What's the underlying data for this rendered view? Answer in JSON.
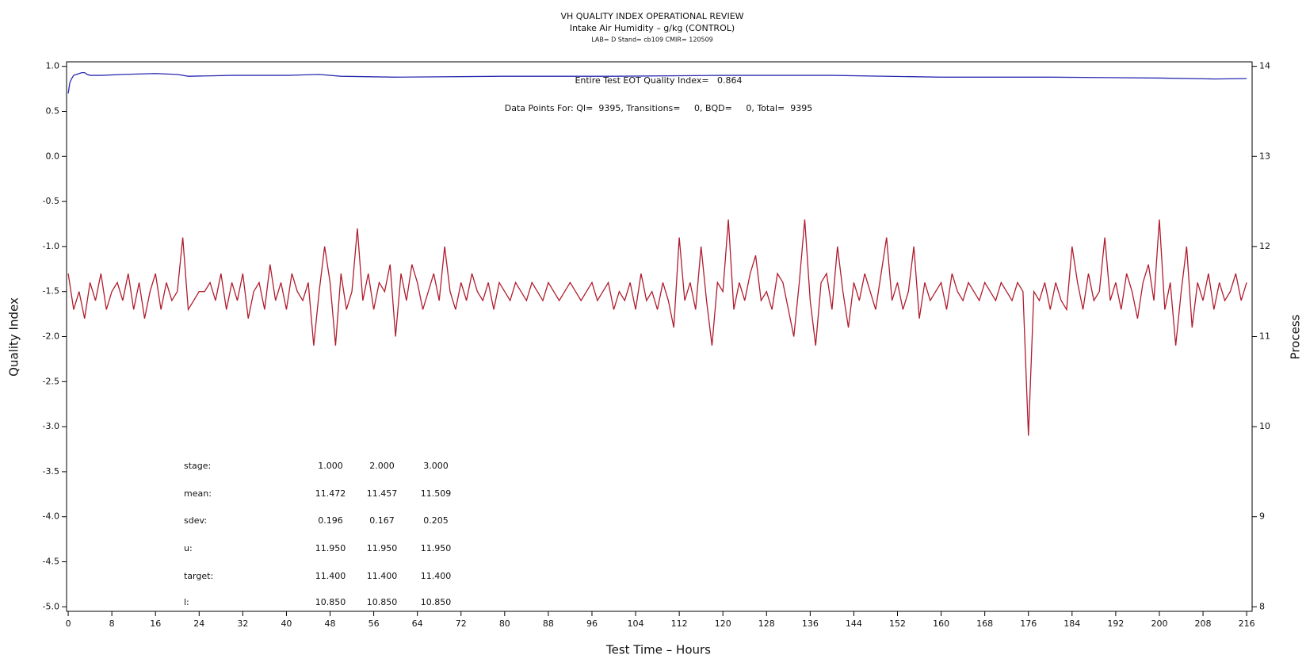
{
  "chart_data": {
    "type": "line",
    "title": "VH QUALITY INDEX OPERATIONAL REVIEW",
    "subtitle": "Intake Air Humidity – g/kg (CONTROL)",
    "subsubtitle": "LAB= D Stand= cb109 CMIR= 120509",
    "xlabel": "Test Time – Hours",
    "ylabel": "Quality Index",
    "y2label": "Process",
    "annotations": [
      "Entire Test EOT Quality Index=   0.864",
      "Data Points For: QI=  9395, Transitions=     0, BQD=     0, Total=  9395"
    ],
    "stats_table": [
      {
        "label": "stage:",
        "values": [
          "1.000",
          "2.000",
          "3.000"
        ]
      },
      {
        "label": "mean:",
        "values": [
          "11.472",
          "11.457",
          "11.509"
        ]
      },
      {
        "label": "sdev:",
        "values": [
          "0.196",
          "0.167",
          "0.205"
        ]
      },
      {
        "label": "u:",
        "values": [
          "11.950",
          "11.950",
          "11.950"
        ]
      },
      {
        "label": "target:",
        "values": [
          "11.400",
          "11.400",
          "11.400"
        ]
      },
      {
        "label": "l:",
        "values": [
          "10.850",
          "10.850",
          "10.850"
        ]
      }
    ],
    "xlim": [
      -0.3,
      217
    ],
    "xticks": [
      0,
      8,
      16,
      24,
      32,
      40,
      48,
      56,
      64,
      72,
      80,
      88,
      96,
      104,
      112,
      120,
      128,
      136,
      144,
      152,
      160,
      168,
      176,
      184,
      192,
      200,
      208,
      216
    ],
    "ylim": [
      -5.05,
      1.05
    ],
    "yticks": [
      {
        "value": 1,
        "label": "1.0"
      },
      0.5,
      {
        "value": 0,
        "label": "0.0"
      },
      -0.5,
      {
        "value": -1,
        "label": "-1.0"
      },
      -1.5,
      {
        "value": -2,
        "label": "-2.0"
      },
      -2.5,
      {
        "value": -3,
        "label": "-3.0"
      },
      -3.5,
      {
        "value": -4,
        "label": "-4.0"
      },
      -4.5,
      {
        "value": -5,
        "label": "-5.0"
      }
    ],
    "y2lim": [
      7.95,
      14.05
    ],
    "y2ticks": [
      8,
      9,
      10,
      11,
      12,
      13,
      14
    ],
    "series": [
      {
        "color": "#b01c2e",
        "axis": "y2",
        "x": [
          0,
          1,
          2,
          3,
          4,
          5,
          6,
          7,
          8,
          9,
          10,
          11,
          12,
          13,
          14,
          15,
          16,
          17,
          18,
          19,
          20,
          21,
          22,
          23,
          24,
          25,
          26,
          27,
          28,
          29,
          30,
          31,
          32,
          33,
          34,
          35,
          36,
          37,
          38,
          39,
          40,
          41,
          42,
          43,
          44,
          45,
          46,
          47,
          48,
          49,
          50,
          51,
          52,
          53,
          54,
          55,
          56,
          57,
          58,
          59,
          60,
          61,
          62,
          63,
          64,
          65,
          66,
          67,
          68,
          69,
          70,
          71,
          72,
          73,
          74,
          75,
          76,
          77,
          78,
          79,
          80,
          81,
          82,
          83,
          84,
          85,
          86,
          87,
          88,
          89,
          90,
          91,
          92,
          93,
          94,
          95,
          96,
          97,
          98,
          99,
          100,
          101,
          102,
          103,
          104,
          105,
          106,
          107,
          108,
          109,
          110,
          111,
          112,
          113,
          114,
          115,
          116,
          117,
          118,
          119,
          120,
          121,
          122,
          123,
          124,
          125,
          126,
          127,
          128,
          129,
          130,
          131,
          132,
          133,
          134,
          135,
          136,
          137,
          138,
          139,
          140,
          141,
          142,
          143,
          144,
          145,
          146,
          147,
          148,
          149,
          150,
          151,
          152,
          153,
          154,
          155,
          156,
          157,
          158,
          159,
          160,
          161,
          162,
          163,
          164,
          165,
          166,
          167,
          168,
          169,
          170,
          171,
          172,
          173,
          174,
          175,
          176,
          177,
          178,
          179,
          180,
          181,
          182,
          183,
          184,
          185,
          186,
          187,
          188,
          189,
          190,
          191,
          192,
          193,
          194,
          195,
          196,
          197,
          198,
          199,
          200,
          201,
          202,
          203,
          204,
          205,
          206,
          207,
          208,
          209,
          210,
          211,
          212,
          213,
          214,
          215,
          216
        ],
        "values": [
          11.7,
          11.3,
          11.5,
          11.2,
          11.6,
          11.4,
          11.7,
          11.3,
          11.5,
          11.6,
          11.4,
          11.7,
          11.3,
          11.6,
          11.2,
          11.5,
          11.7,
          11.3,
          11.6,
          11.4,
          11.5,
          12.1,
          11.3,
          11.4,
          11.5,
          11.5,
          11.6,
          11.4,
          11.7,
          11.3,
          11.6,
          11.4,
          11.7,
          11.2,
          11.5,
          11.6,
          11.3,
          11.8,
          11.4,
          11.6,
          11.3,
          11.7,
          11.5,
          11.4,
          11.6,
          10.9,
          11.5,
          12.0,
          11.6,
          10.9,
          11.7,
          11.3,
          11.5,
          12.2,
          11.4,
          11.7,
          11.3,
          11.6,
          11.5,
          11.8,
          11.0,
          11.7,
          11.4,
          11.8,
          11.6,
          11.3,
          11.5,
          11.7,
          11.4,
          12.0,
          11.5,
          11.3,
          11.6,
          11.4,
          11.7,
          11.5,
          11.4,
          11.6,
          11.3,
          11.6,
          11.5,
          11.4,
          11.6,
          11.5,
          11.4,
          11.6,
          11.5,
          11.4,
          11.6,
          11.5,
          11.4,
          11.5,
          11.6,
          11.5,
          11.4,
          11.5,
          11.6,
          11.4,
          11.5,
          11.6,
          11.3,
          11.5,
          11.4,
          11.6,
          11.3,
          11.7,
          11.4,
          11.5,
          11.3,
          11.6,
          11.4,
          11.1,
          12.1,
          11.4,
          11.6,
          11.3,
          12.0,
          11.4,
          10.9,
          11.6,
          11.5,
          12.3,
          11.3,
          11.6,
          11.4,
          11.7,
          11.9,
          11.4,
          11.5,
          11.3,
          11.7,
          11.6,
          11.3,
          11.0,
          11.6,
          12.3,
          11.4,
          10.9,
          11.6,
          11.7,
          11.3,
          12.0,
          11.5,
          11.1,
          11.6,
          11.4,
          11.7,
          11.5,
          11.3,
          11.7,
          12.1,
          11.4,
          11.6,
          11.3,
          11.5,
          12.0,
          11.2,
          11.6,
          11.4,
          11.5,
          11.6,
          11.3,
          11.7,
          11.5,
          11.4,
          11.6,
          11.5,
          11.4,
          11.6,
          11.5,
          11.4,
          11.6,
          11.5,
          11.4,
          11.6,
          11.5,
          9.9,
          11.5,
          11.4,
          11.6,
          11.3,
          11.6,
          11.4,
          11.3,
          12.0,
          11.6,
          11.3,
          11.7,
          11.4,
          11.5,
          12.1,
          11.4,
          11.6,
          11.3,
          11.7,
          11.5,
          11.2,
          11.6,
          11.8,
          11.4,
          12.3,
          11.3,
          11.6,
          10.9,
          11.5,
          12.0,
          11.1,
          11.6,
          11.4,
          11.7,
          11.3,
          11.6,
          11.4,
          11.5,
          11.7,
          11.4,
          11.6
        ]
      },
      {
        "color": "#2a2ab0",
        "axis": "y",
        "x": [
          0,
          0.3,
          0.6,
          1,
          1.5,
          2,
          2.5,
          3,
          3.5,
          4,
          6,
          10,
          16,
          20,
          22,
          30,
          40,
          46,
          50,
          60,
          80,
          100,
          120,
          140,
          160,
          180,
          200,
          210,
          216
        ],
        "values": [
          0.7,
          0.82,
          0.86,
          0.9,
          0.91,
          0.92,
          0.93,
          0.93,
          0.91,
          0.9,
          0.9,
          0.91,
          0.92,
          0.91,
          0.89,
          0.9,
          0.9,
          0.91,
          0.89,
          0.88,
          0.89,
          0.89,
          0.9,
          0.9,
          0.88,
          0.88,
          0.87,
          0.86,
          0.864
        ]
      }
    ]
  }
}
